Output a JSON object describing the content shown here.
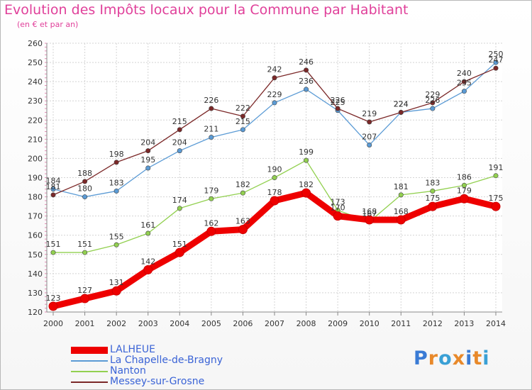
{
  "header": {
    "title": "Evolution des Impôts locaux pour la Commune par Habitant",
    "subtitle": "(en € et par an)"
  },
  "logo_text": "Proxiti",
  "chart_data": {
    "type": "line",
    "title": "Evolution des Impôts locaux pour la Commune par Habitant",
    "subtitle": "(en € et par an)",
    "xlabel": "",
    "ylabel": "",
    "categories": [
      "2000",
      "2001",
      "2002",
      "2003",
      "2004",
      "2005",
      "2006",
      "2007",
      "2008",
      "2009",
      "2010",
      "2011",
      "2012",
      "2013",
      "2014"
    ],
    "ylim": [
      120,
      260
    ],
    "yticks": [
      120,
      130,
      140,
      150,
      160,
      170,
      180,
      190,
      200,
      210,
      220,
      230,
      240,
      250,
      260
    ],
    "grid": true,
    "legend_position": "bottom",
    "series": [
      {
        "name": "LALHEUE",
        "color": "#ee0000",
        "values": [
          123,
          127,
          131,
          142,
          151,
          162,
          163,
          178,
          182,
          170,
          168,
          168,
          175,
          179,
          175
        ]
      },
      {
        "name": "La Chapelle-de-Bragny",
        "color": "#5b9bd5",
        "values": [
          184,
          180,
          183,
          195,
          204,
          211,
          215,
          229,
          236,
          225,
          207,
          224,
          226,
          235,
          250
        ]
      },
      {
        "name": "Nanton",
        "color": "#92d050",
        "values": [
          151,
          151,
          155,
          161,
          174,
          179,
          182,
          190,
          199,
          173,
          167,
          181,
          183,
          186,
          191
        ]
      },
      {
        "name": "Messey-sur-Grosne",
        "color": "#7b2828",
        "values": [
          181,
          188,
          198,
          204,
          215,
          226,
          222,
          242,
          246,
          226,
          219,
          224,
          229,
          240,
          247
        ]
      }
    ]
  }
}
